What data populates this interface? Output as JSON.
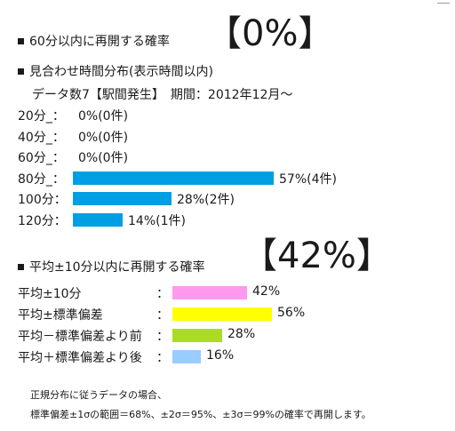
{
  "colors": {
    "blue": "#009ee3",
    "pink": "#ff99ee",
    "yellow": "#ffff00",
    "green": "#aadd22",
    "lightblue": "#99ccff"
  },
  "section1": {
    "title": "60分以内に再開する確率",
    "value": "【0%】"
  },
  "section2": {
    "title": "見合わせ時間分布(表示時間以内)",
    "subtitle": "データ数7【駅間発生】　期間：2012年12月～",
    "rows": [
      {
        "label": "20分_：",
        "value": "0%(0件)",
        "percent": 0
      },
      {
        "label": "40分_：",
        "value": "0%(0件)",
        "percent": 0
      },
      {
        "label": "60分_：",
        "value": "0%(0件)",
        "percent": 0
      },
      {
        "label": "80分_：",
        "value": "57%(4件)",
        "percent": 57
      },
      {
        "label": "100分：",
        "value": "28%(2件)",
        "percent": 28
      },
      {
        "label": "120分：",
        "value": "14%(1件)",
        "percent": 14
      }
    ]
  },
  "section3": {
    "title": "平均±10分以内に再開する確率",
    "value": "【42%】",
    "rows": [
      {
        "label": "平均±10分",
        "sep": "：",
        "value": "42%",
        "percent": 42,
        "color": "#ff99ee"
      },
      {
        "label": "平均±標準偏差",
        "sep": "：",
        "value": "56%",
        "percent": 56,
        "color": "#ffff00"
      },
      {
        "label": "平均－標準偏差より前",
        "sep": "：",
        "value": "28%",
        "percent": 28,
        "color": "#aadd22"
      },
      {
        "label": "平均＋標準偏差より後",
        "sep": "：",
        "value": "16%",
        "percent": 16,
        "color": "#99ccff"
      }
    ]
  },
  "note": {
    "line1": "正規分布に従うデータの場合、",
    "line2": "標準偏差±1σの範囲＝68%、±2σ＝95%、±3σ＝99%の確率で再開します。"
  }
}
